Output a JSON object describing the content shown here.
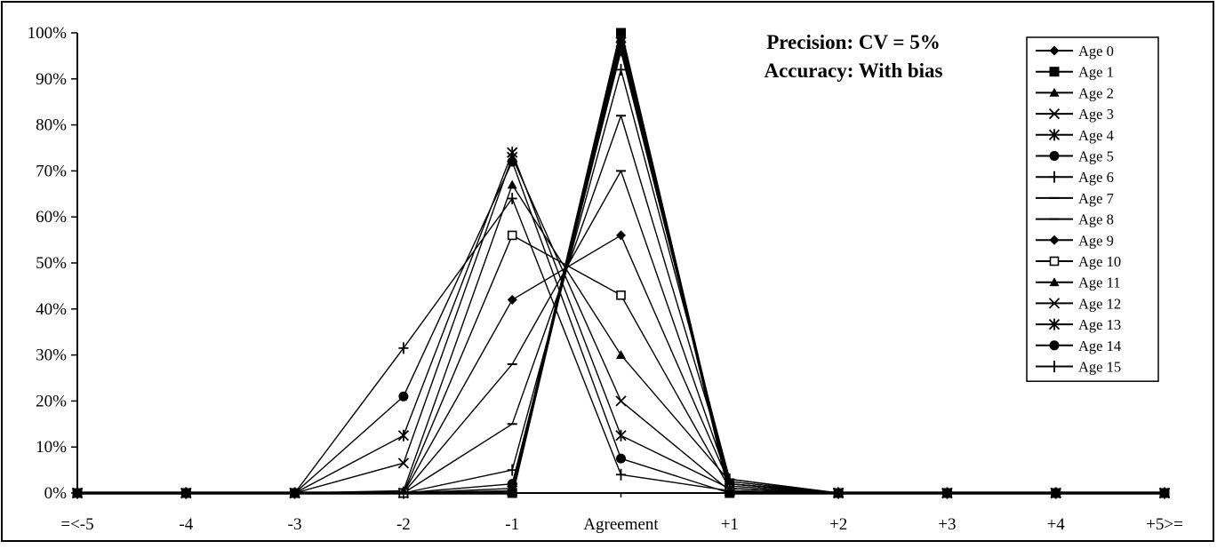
{
  "chart_data": {
    "type": "line",
    "title": [
      "Precision: CV = 5%",
      "Accuracy: With bias"
    ],
    "xlabel": "",
    "ylabel": "",
    "categories": [
      "=<-5",
      "-4",
      "-3",
      "-2",
      "-1",
      "Agreement",
      "+1",
      "+2",
      "+3",
      "+4",
      "+5>="
    ],
    "ylim": [
      0,
      100
    ],
    "yticks": [
      "0%",
      "10%",
      "20%",
      "30%",
      "40%",
      "50%",
      "60%",
      "70%",
      "80%",
      "90%",
      "100%"
    ],
    "legend_position": "right",
    "series": [
      {
        "name": "Age 0",
        "marker": "diamond",
        "values": [
          0,
          0,
          0,
          0,
          0,
          100,
          0,
          0,
          0,
          0,
          0
        ]
      },
      {
        "name": "Age 1",
        "marker": "square",
        "values": [
          0,
          0,
          0,
          0,
          0,
          100,
          0,
          0,
          0,
          0,
          0
        ]
      },
      {
        "name": "Age 2",
        "marker": "triangle",
        "values": [
          0,
          0,
          0,
          0,
          0,
          99,
          1,
          0,
          0,
          0,
          0
        ]
      },
      {
        "name": "Age 3",
        "marker": "x",
        "values": [
          0,
          0,
          0,
          0,
          0.5,
          98,
          1.5,
          0,
          0,
          0,
          0
        ]
      },
      {
        "name": "Age 4",
        "marker": "star",
        "values": [
          0,
          0,
          0,
          0,
          1,
          97,
          2,
          0,
          0,
          0,
          0
        ]
      },
      {
        "name": "Age 5",
        "marker": "circle",
        "values": [
          0,
          0,
          0,
          0,
          2,
          96,
          2,
          0,
          0,
          0,
          0
        ]
      },
      {
        "name": "Age 6",
        "marker": "plus",
        "values": [
          0,
          0,
          0,
          0,
          5,
          92,
          3,
          0,
          0,
          0,
          0
        ]
      },
      {
        "name": "Age 7",
        "marker": "dash",
        "values": [
          0,
          0,
          0,
          0,
          15,
          82,
          3,
          0,
          0,
          0,
          0
        ]
      },
      {
        "name": "Age 8",
        "marker": "dash",
        "values": [
          0,
          0,
          0,
          0,
          28,
          70,
          2,
          0,
          0,
          0,
          0
        ]
      },
      {
        "name": "Age 9",
        "marker": "diamond",
        "values": [
          0,
          0,
          0,
          0,
          42,
          56,
          2,
          0,
          0,
          0,
          0
        ]
      },
      {
        "name": "Age 10",
        "marker": "open-square",
        "values": [
          0,
          0,
          0,
          0,
          56,
          43,
          1,
          0,
          0,
          0,
          0
        ]
      },
      {
        "name": "Age 11",
        "marker": "triangle",
        "values": [
          0,
          0,
          0,
          0.5,
          67,
          30,
          2.5,
          0,
          0,
          0,
          0
        ]
      },
      {
        "name": "Age 12",
        "marker": "x",
        "values": [
          0,
          0,
          0,
          6.5,
          73,
          20,
          0.5,
          0,
          0,
          0,
          0
        ]
      },
      {
        "name": "Age 13",
        "marker": "star",
        "values": [
          0,
          0,
          0,
          12.5,
          74,
          12.5,
          1,
          0,
          0,
          0,
          0
        ]
      },
      {
        "name": "Age 14",
        "marker": "circle",
        "values": [
          0,
          0,
          0,
          21,
          72,
          7.5,
          0,
          0,
          0,
          0,
          0
        ]
      },
      {
        "name": "Age 15",
        "marker": "plus",
        "values": [
          0,
          0,
          0,
          31.5,
          64,
          4,
          0.5,
          0,
          0,
          0,
          0
        ]
      }
    ]
  }
}
